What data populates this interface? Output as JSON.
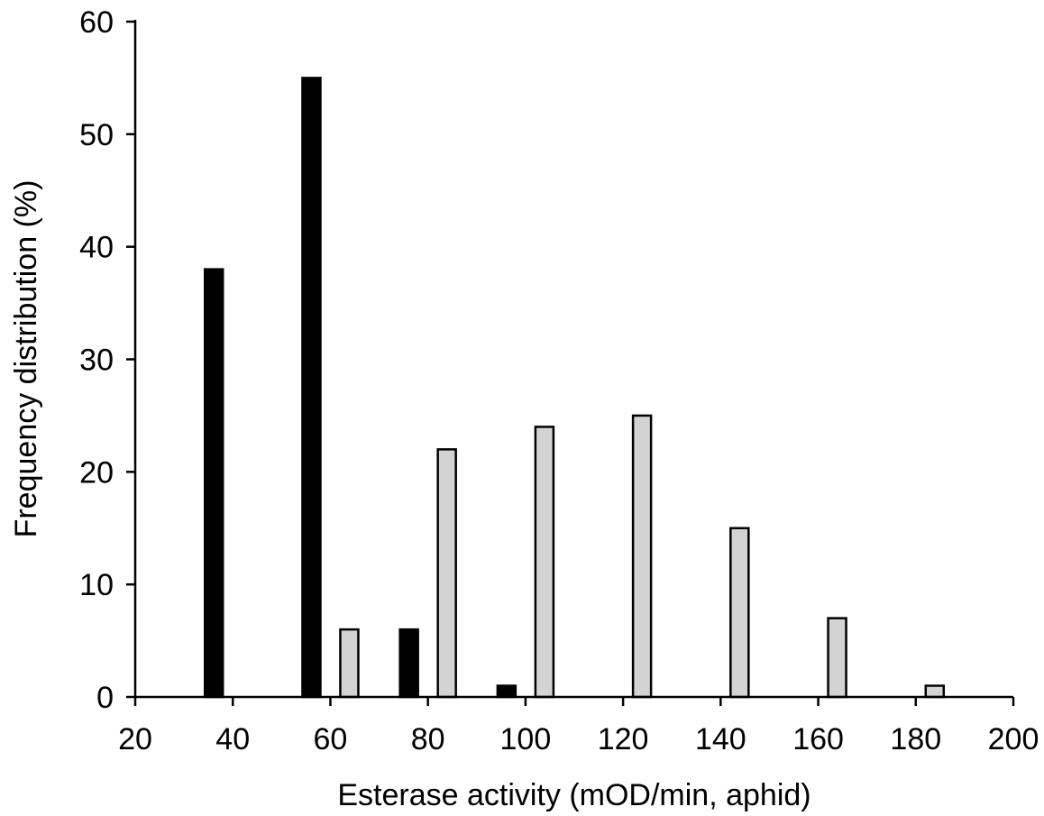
{
  "chart_data": {
    "type": "bar",
    "title": "",
    "xlabel": "Esterase activity (mOD/min, aphid)",
    "ylabel": "Frequency distribution (%)",
    "xlim": [
      20,
      200
    ],
    "ylim": [
      0,
      60
    ],
    "x_ticks": [
      20,
      40,
      60,
      80,
      100,
      120,
      140,
      160,
      180,
      200
    ],
    "y_ticks": [
      0,
      10,
      20,
      30,
      40,
      50,
      60
    ],
    "grid": false,
    "series": [
      {
        "color": "#000000",
        "x": [
          40,
          60,
          80,
          100
        ],
        "values": [
          38,
          55,
          6,
          1
        ]
      },
      {
        "color": "#d3d3d3",
        "x": [
          60,
          80,
          100,
          120,
          140,
          160,
          180
        ],
        "values": [
          6,
          22,
          24,
          25,
          15,
          7,
          1
        ]
      }
    ]
  }
}
